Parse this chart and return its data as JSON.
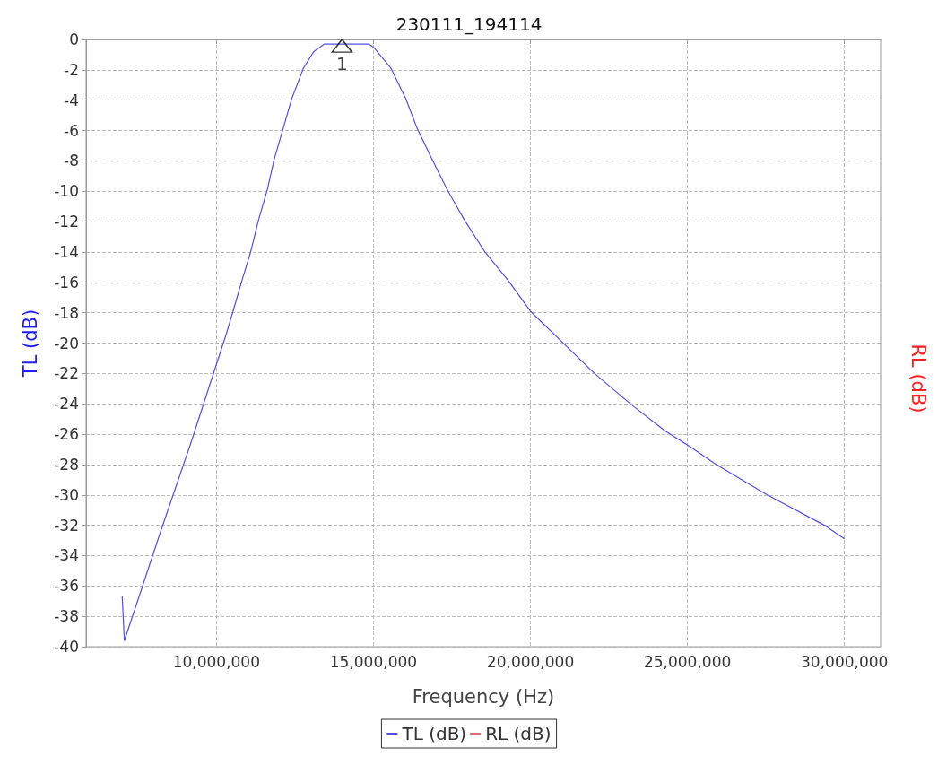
{
  "chart_data": {
    "type": "line",
    "title": "230111_194114",
    "xlabel": "Frequency (Hz)",
    "ylabel": "TL (dB)",
    "y2label": "RL (dB)",
    "xlim": [
      5850000,
      31150000
    ],
    "xticks": [
      {
        "value": 10000000,
        "label": "10,000,000"
      },
      {
        "value": 15000000,
        "label": "15,000,000"
      },
      {
        "value": 20000000,
        "label": "20,000,000"
      },
      {
        "value": 25000000,
        "label": "25,000,000"
      },
      {
        "value": 30000000,
        "label": "30,000,000"
      }
    ],
    "ylim": [
      -40,
      0
    ],
    "yticks": [
      -40,
      -38,
      -36,
      -34,
      -32,
      -30,
      -28,
      -26,
      -24,
      -22,
      -20,
      -18,
      -16,
      -14,
      -12,
      -10,
      -8,
      -6,
      -4,
      -2,
      0
    ],
    "grid": true,
    "legend": "bottom",
    "marker": "none",
    "line_style": "solid",
    "series": [
      {
        "name": "TL (dB)",
        "color": "#5050e0",
        "x": [
          7000000,
          7070000,
          7650000,
          8210000,
          9200000,
          10000000,
          10300000,
          10530000,
          10810000,
          11090000,
          11340000,
          11620000,
          11840000,
          12120000,
          12400000,
          12770000,
          13100000,
          13440000,
          14000000,
          14850000,
          15000000,
          15560000,
          16030000,
          16400000,
          16870000,
          17350000,
          17900000,
          18550000,
          19300000,
          20000000,
          21090000,
          22040000,
          23240000,
          24300000,
          25060000,
          25920000,
          27540000,
          29360000,
          30000000
        ],
        "values": [
          -36.7,
          -39.6,
          -36.0,
          -32.5,
          -26.5,
          -21.4,
          -19.5,
          -17.9,
          -15.9,
          -14.0,
          -11.9,
          -9.9,
          -7.9,
          -5.9,
          -3.9,
          -1.9,
          -0.8,
          -0.3,
          -0.3,
          -0.3,
          -0.5,
          -1.9,
          -3.9,
          -5.9,
          -7.9,
          -9.9,
          -11.9,
          -14.0,
          -15.9,
          -17.9,
          -20.1,
          -22.0,
          -24.1,
          -25.8,
          -26.8,
          -28.0,
          -30.0,
          -32.0,
          -32.9
        ]
      },
      {
        "name": "RL (dB)",
        "color": "#e07070"
      },
      {
        "name": "1",
        "type": "scatter",
        "marker": "triangle",
        "color": "#000000",
        "x": [
          14000000
        ],
        "values": [
          -0.3
        ]
      }
    ]
  }
}
